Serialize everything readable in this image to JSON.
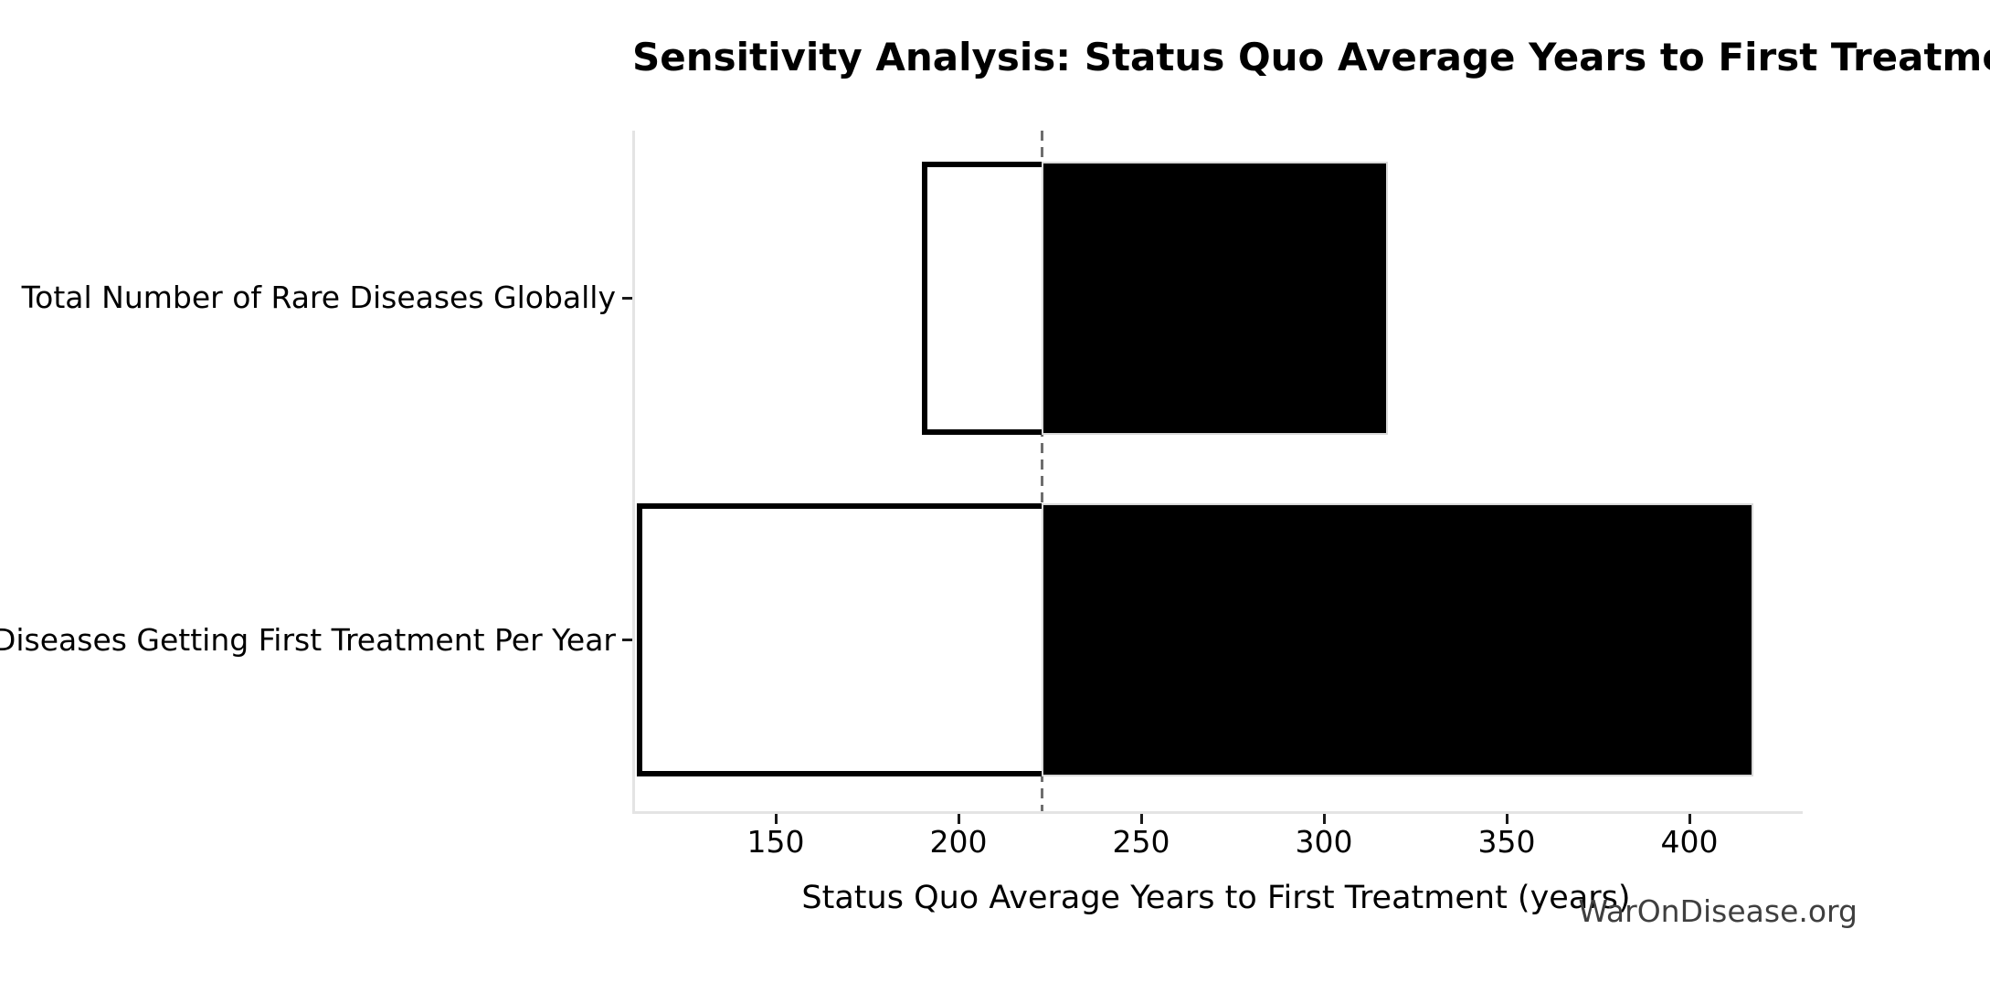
{
  "watermark": "WarOnDisease.org",
  "chart_data": {
    "type": "bar",
    "orientation": "horizontal",
    "subtype": "tornado-sensitivity",
    "title": "Sensitivity Analysis: Status Quo Average Years to First Treatment",
    "xlabel": "Status Quo Average Years to First Treatment (years)",
    "ylabel": "",
    "categories": [
      "Total Number of Rare Diseases Globally",
      "Diseases Getting First Treatment Per Year"
    ],
    "rows": [
      {
        "label": "Total Number of Rare Diseases Globally",
        "low": 190,
        "high": 316
      },
      {
        "label": "Diseases Getting First Treatment Per Year",
        "low": 112,
        "high": 416
      }
    ],
    "baseline": 222,
    "xticks": [
      150,
      200,
      250,
      300,
      350,
      400
    ],
    "xlim": [
      110.75,
      430.25
    ],
    "ylim": [
      -0.5,
      1.49
    ],
    "bar_thickness": 0.8,
    "grid": false,
    "legend": false,
    "colors": {
      "bar_below_baseline_fill": "#ffffff",
      "bar_above_baseline_fill": "#000000",
      "bar_edge": "#000000",
      "black_segment_edge": "#d9d9d9",
      "baseline_line": "#6e6e6e",
      "spine": "#e4e4e4",
      "tick_mark": "#1a1a1a",
      "text": "#000000",
      "watermark_text": "#3f3f3f",
      "background": "#ffffff"
    }
  }
}
